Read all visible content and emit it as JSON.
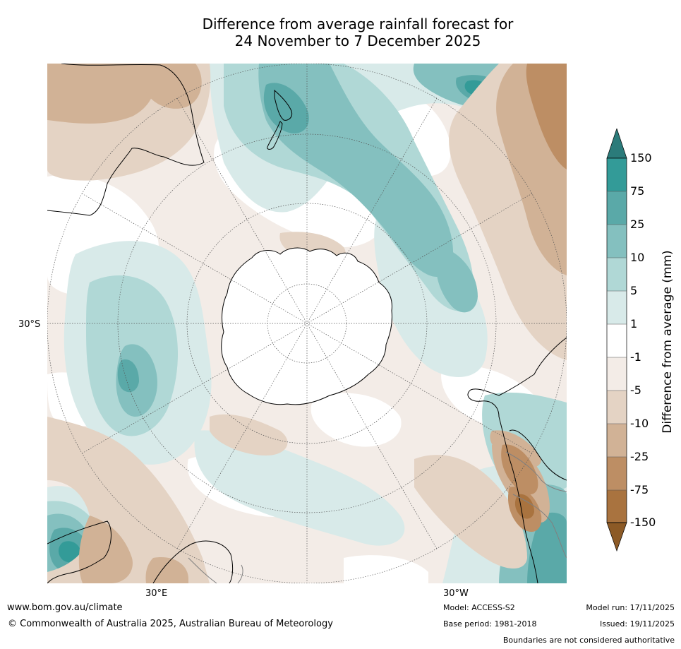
{
  "title": {
    "line1": "Difference from average rainfall forecast for",
    "line2": "24 November to 7 December 2025"
  },
  "map": {
    "projection": "south-polar-stereographic",
    "axis_labels": {
      "left": "30°S",
      "bottom_left": "30°E",
      "bottom_right": "30°W"
    }
  },
  "colorbar": {
    "title": "Difference from average (mm)",
    "ticks": [
      "150",
      "75",
      "25",
      "10",
      "5",
      "1",
      "-1",
      "-5",
      "-10",
      "-25",
      "-75",
      "-150"
    ],
    "colors": {
      "extend_high": "#2b7b7a",
      "b150_75": "#339b98",
      "b75_25": "#5aa9a8",
      "b25_10": "#84c0bf",
      "b10_5": "#b0d8d6",
      "b5_1": "#d8eae9",
      "b1_m1": "#ffffff",
      "bm1_m5": "#f3ece7",
      "bm5_m10": "#e4d3c4",
      "bm10_m25": "#d1b296",
      "bm25_m75": "#bd8e64",
      "bm75_m150": "#a9733f",
      "extend_low": "#8c5a26"
    }
  },
  "footer": {
    "url": "www.bom.gov.au/climate",
    "copyright": "© Commonwealth of Australia 2025, Australian Bureau of Meteorology",
    "model": "Model: ACCESS-S2",
    "base_period": "Base period: 1981-2018",
    "model_run": "Model run: 17/11/2025",
    "issued": "Issued: 19/11/2025",
    "disclaimer": "Boundaries are not considered authoritative"
  }
}
